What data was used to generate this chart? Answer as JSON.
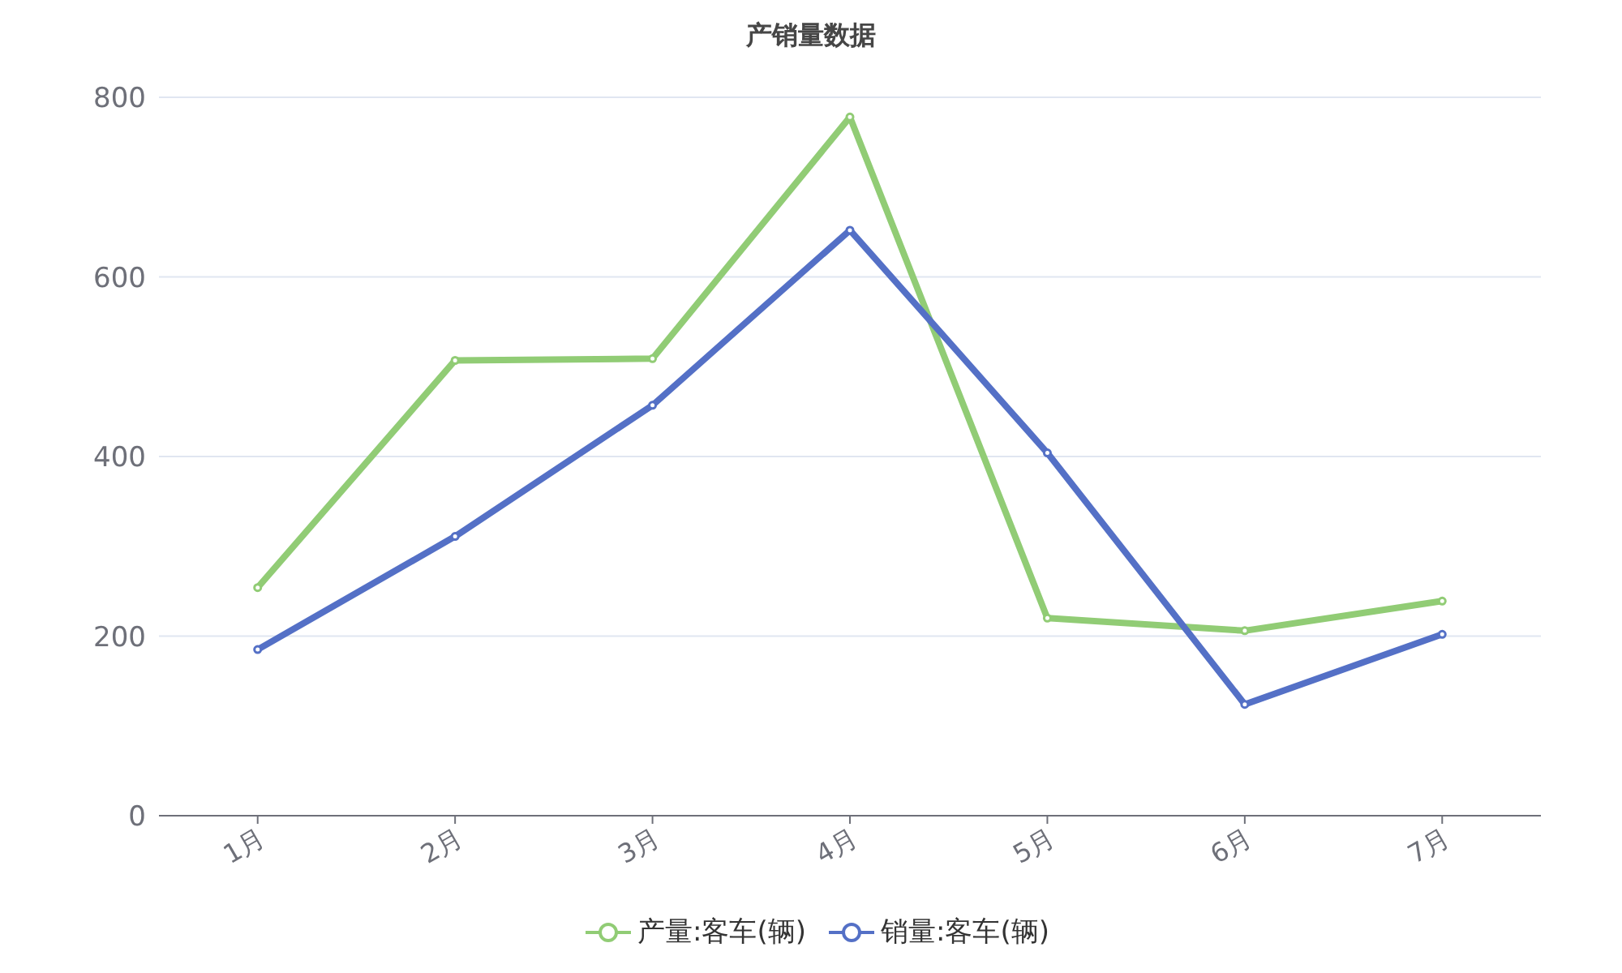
{
  "chart_data": {
    "type": "line",
    "title": "产销量数据",
    "categories": [
      "1月",
      "2月",
      "3月",
      "4月",
      "5月",
      "6月",
      "7月"
    ],
    "series": [
      {
        "name": "产量:客车(辆)",
        "color": "#91cc75",
        "values": [
          254,
          507,
          509,
          778,
          220,
          206,
          239
        ]
      },
      {
        "name": "销量:客车(辆)",
        "color": "#5470c6",
        "values": [
          185,
          311,
          457,
          652,
          404,
          124,
          202
        ]
      }
    ],
    "ylim": [
      0,
      800
    ],
    "yticks": [
      0,
      200,
      400,
      600,
      800
    ],
    "grid": "y",
    "legend": "bottom",
    "marker": "circle",
    "line_style": "solid"
  }
}
